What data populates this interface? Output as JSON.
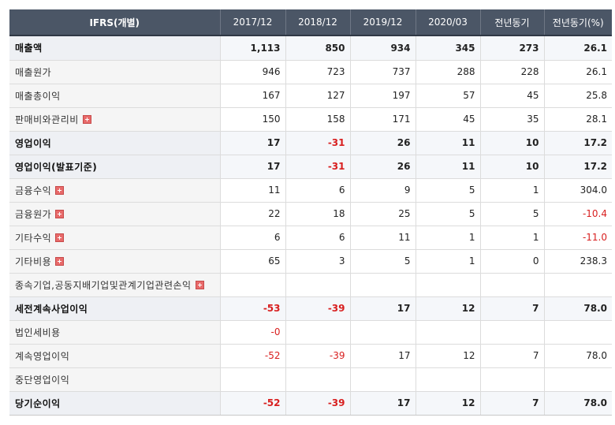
{
  "header": {
    "label": "IFRS(개별)",
    "columns": [
      "2017/12",
      "2018/12",
      "2019/12",
      "2020/03",
      "전년동기",
      "전년동기(%)"
    ]
  },
  "rows": [
    {
      "label": "매출액",
      "bold": true,
      "expand": false,
      "values": [
        "1,113",
        "850",
        "934",
        "345",
        "273",
        "26.1"
      ],
      "neg": [
        false,
        false,
        false,
        false,
        false,
        false
      ]
    },
    {
      "label": "매출원가",
      "bold": false,
      "expand": false,
      "values": [
        "946",
        "723",
        "737",
        "288",
        "228",
        "26.1"
      ],
      "neg": [
        false,
        false,
        false,
        false,
        false,
        false
      ]
    },
    {
      "label": "매출총이익",
      "bold": false,
      "expand": false,
      "values": [
        "167",
        "127",
        "197",
        "57",
        "45",
        "25.8"
      ],
      "neg": [
        false,
        false,
        false,
        false,
        false,
        false
      ]
    },
    {
      "label": "판매비와관리비",
      "bold": false,
      "expand": true,
      "values": [
        "150",
        "158",
        "171",
        "45",
        "35",
        "28.1"
      ],
      "neg": [
        false,
        false,
        false,
        false,
        false,
        false
      ]
    },
    {
      "label": "영업이익",
      "bold": true,
      "expand": false,
      "values": [
        "17",
        "-31",
        "26",
        "11",
        "10",
        "17.2"
      ],
      "neg": [
        false,
        true,
        false,
        false,
        false,
        false
      ]
    },
    {
      "label": "영업이익(발표기준)",
      "bold": true,
      "expand": false,
      "values": [
        "17",
        "-31",
        "26",
        "11",
        "10",
        "17.2"
      ],
      "neg": [
        false,
        true,
        false,
        false,
        false,
        false
      ]
    },
    {
      "label": "금융수익",
      "bold": false,
      "expand": true,
      "values": [
        "11",
        "6",
        "9",
        "5",
        "1",
        "304.0"
      ],
      "neg": [
        false,
        false,
        false,
        false,
        false,
        false
      ]
    },
    {
      "label": "금융원가",
      "bold": false,
      "expand": true,
      "values": [
        "22",
        "18",
        "25",
        "5",
        "5",
        "-10.4"
      ],
      "neg": [
        false,
        false,
        false,
        false,
        false,
        true
      ]
    },
    {
      "label": "기타수익",
      "bold": false,
      "expand": true,
      "values": [
        "6",
        "6",
        "11",
        "1",
        "1",
        "-11.0"
      ],
      "neg": [
        false,
        false,
        false,
        false,
        false,
        true
      ]
    },
    {
      "label": "기타비용",
      "bold": false,
      "expand": true,
      "values": [
        "65",
        "3",
        "5",
        "1",
        "0",
        "238.3"
      ],
      "neg": [
        false,
        false,
        false,
        false,
        false,
        false
      ]
    },
    {
      "label": "종속기업,공동지배기업및관계기업관련손익",
      "bold": false,
      "expand": true,
      "values": [
        "",
        "",
        "",
        "",
        "",
        ""
      ],
      "neg": [
        false,
        false,
        false,
        false,
        false,
        false
      ]
    },
    {
      "label": "세전계속사업이익",
      "bold": true,
      "expand": false,
      "values": [
        "-53",
        "-39",
        "17",
        "12",
        "7",
        "78.0"
      ],
      "neg": [
        true,
        true,
        false,
        false,
        false,
        false
      ]
    },
    {
      "label": "법인세비용",
      "bold": false,
      "expand": false,
      "values": [
        "-0",
        "",
        "",
        "",
        "",
        ""
      ],
      "neg": [
        true,
        false,
        false,
        false,
        false,
        false
      ]
    },
    {
      "label": "계속영업이익",
      "bold": false,
      "expand": false,
      "values": [
        "-52",
        "-39",
        "17",
        "12",
        "7",
        "78.0"
      ],
      "neg": [
        true,
        true,
        false,
        false,
        false,
        false
      ]
    },
    {
      "label": "중단영업이익",
      "bold": false,
      "expand": false,
      "values": [
        "",
        "",
        "",
        "",
        "",
        ""
      ],
      "neg": [
        false,
        false,
        false,
        false,
        false,
        false
      ]
    },
    {
      "label": "당기순이익",
      "bold": true,
      "expand": false,
      "values": [
        "-52",
        "-39",
        "17",
        "12",
        "7",
        "78.0"
      ],
      "neg": [
        true,
        true,
        false,
        false,
        false,
        false
      ]
    }
  ],
  "colors": {
    "header_bg": "#4b5666",
    "negative": "#d81f1f",
    "expand_icon": "#e86a6a"
  }
}
